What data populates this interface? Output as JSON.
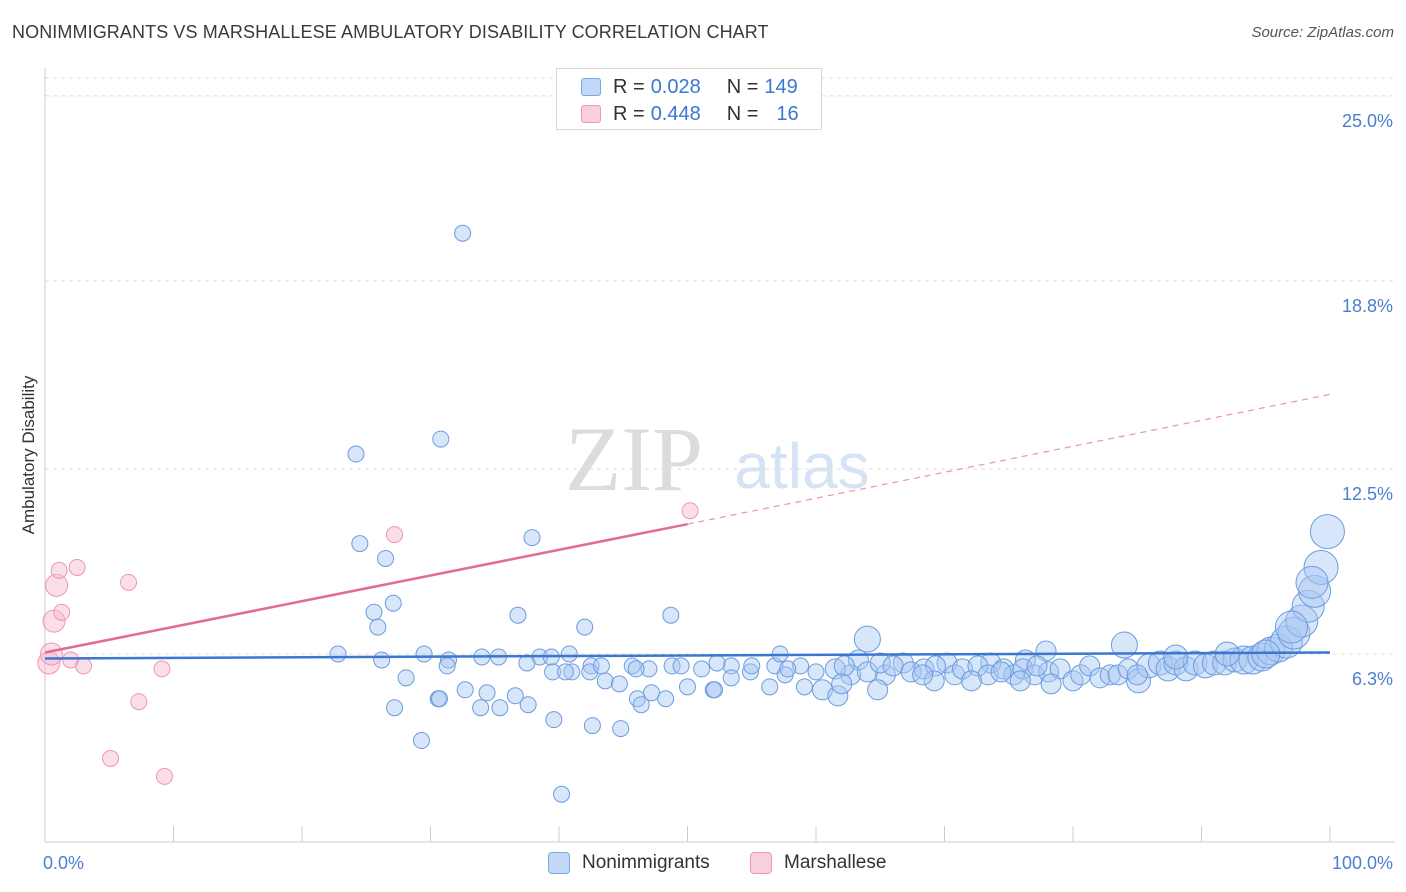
{
  "header": {
    "title": "NONIMMIGRANTS VS MARSHALLESE AMBULATORY DISABILITY CORRELATION CHART",
    "source": "Source: ZipAtlas.com"
  },
  "watermark": {
    "zip": "ZIP",
    "atlas": "atlas"
  },
  "legend_top": {
    "rows": [
      {
        "r_label": "R =",
        "r_value": "0.028",
        "n_label": "N =",
        "n_value": "149",
        "color": "#a9c8f2"
      },
      {
        "r_label": "R =",
        "r_value": "0.448",
        "n_label": "N =",
        "n_value": "16",
        "color": "#f6b9cb"
      }
    ]
  },
  "legend_bottom": {
    "items": [
      {
        "label": "Nonimmigrants",
        "color": "#a9c8f2"
      },
      {
        "label": "Marshallese",
        "color": "#f6b9cb"
      }
    ]
  },
  "chart_data": {
    "type": "scatter",
    "title": "NONIMMIGRANTS VS MARSHALLESE AMBULATORY DISABILITY CORRELATION CHART",
    "xlabel": "",
    "ylabel": "Ambulatory Disability",
    "xlim": [
      0,
      100
    ],
    "ylim": [
      0,
      25.6
    ],
    "x_tick_labels": [
      "0.0%",
      "100.0%"
    ],
    "y_ticks": [
      {
        "value": 6.3,
        "label": "6.3%"
      },
      {
        "value": 12.5,
        "label": "12.5%"
      },
      {
        "value": 18.8,
        "label": "18.8%"
      },
      {
        "value": 25.0,
        "label": "25.0%"
      }
    ],
    "grid": "horizontal dashed",
    "legend_position": "top-center",
    "colors": {
      "nonimmigrants": "#4a7fd0",
      "marshallese": "#e26a93"
    },
    "series": [
      {
        "name": "Nonimmigrants",
        "trend": {
          "x": [
            0,
            100
          ],
          "y": [
            6.15,
            6.35
          ],
          "style": "solid"
        },
        "points": [
          [
            32.5,
            20.4,
            1
          ],
          [
            24.2,
            13.0,
            1
          ],
          [
            24.5,
            10.0,
            1
          ],
          [
            30.8,
            13.5,
            1
          ],
          [
            26.5,
            9.5,
            1
          ],
          [
            37.9,
            10.2,
            1
          ],
          [
            25.6,
            7.7,
            1
          ],
          [
            25.9,
            7.2,
            1
          ],
          [
            27.1,
            8.0,
            1
          ],
          [
            36.8,
            7.6,
            1
          ],
          [
            42.0,
            7.2,
            1
          ],
          [
            48.7,
            7.6,
            1
          ],
          [
            26.2,
            6.1,
            1
          ],
          [
            29.5,
            6.3,
            1
          ],
          [
            31.4,
            6.1,
            1
          ],
          [
            35.3,
            6.2,
            1
          ],
          [
            38.5,
            6.2,
            1
          ],
          [
            39.4,
            6.2,
            1
          ],
          [
            40.8,
            6.3,
            1
          ],
          [
            42.5,
            5.9,
            1
          ],
          [
            45.7,
            5.9,
            1
          ],
          [
            47.0,
            5.8,
            1
          ],
          [
            51.1,
            5.8,
            1
          ],
          [
            48.8,
            5.9,
            1
          ],
          [
            53.4,
            5.9,
            1
          ],
          [
            56.8,
            5.9,
            1
          ],
          [
            57.2,
            6.3,
            1
          ],
          [
            58.8,
            5.9,
            1
          ],
          [
            63.3,
            6.1,
            1
          ],
          [
            66.8,
            6.0,
            1
          ],
          [
            70.2,
            6.0,
            1
          ],
          [
            73.6,
            6.0,
            1
          ],
          [
            76.3,
            6.1,
            1
          ],
          [
            77.9,
            6.4,
            1
          ],
          [
            28.1,
            5.5,
            1
          ],
          [
            30.6,
            4.8,
            1
          ],
          [
            32.7,
            5.1,
            1
          ],
          [
            34.4,
            5.0,
            1
          ],
          [
            35.4,
            4.5,
            1
          ],
          [
            36.6,
            4.9,
            1
          ],
          [
            37.6,
            4.6,
            1
          ],
          [
            39.5,
            5.7,
            1
          ],
          [
            41.0,
            5.7,
            1
          ],
          [
            42.4,
            5.7,
            1
          ],
          [
            43.6,
            5.4,
            1
          ],
          [
            44.7,
            5.3,
            1
          ],
          [
            46.1,
            4.8,
            1
          ],
          [
            47.2,
            5.0,
            1
          ],
          [
            48.3,
            4.8,
            1
          ],
          [
            50.0,
            5.2,
            1
          ],
          [
            52.0,
            5.1,
            1
          ],
          [
            53.4,
            5.5,
            1
          ],
          [
            54.9,
            5.7,
            1
          ],
          [
            56.4,
            5.2,
            1
          ],
          [
            57.6,
            5.6,
            1
          ],
          [
            59.1,
            5.2,
            1
          ],
          [
            60.5,
            5.1,
            1
          ],
          [
            61.7,
            4.9,
            1
          ],
          [
            62.7,
            5.6,
            1
          ],
          [
            65.4,
            5.6,
            1
          ],
          [
            27.2,
            4.5,
            1
          ],
          [
            30.7,
            4.8,
            1
          ],
          [
            33.9,
            4.5,
            1
          ],
          [
            39.6,
            4.1,
            1
          ],
          [
            42.6,
            3.9,
            1
          ],
          [
            44.8,
            3.8,
            1
          ],
          [
            46.4,
            4.6,
            1
          ],
          [
            29.3,
            3.4,
            1
          ],
          [
            40.2,
            1.6,
            1
          ],
          [
            22.8,
            6.3,
            1
          ],
          [
            31.3,
            5.9,
            1
          ],
          [
            34.0,
            6.2,
            1
          ],
          [
            37.5,
            6.0,
            1
          ],
          [
            40.5,
            5.7,
            1
          ],
          [
            43.3,
            5.9,
            1
          ],
          [
            46.0,
            5.8,
            1
          ],
          [
            49.5,
            5.9,
            1
          ],
          [
            52.3,
            6.0,
            1
          ],
          [
            55.0,
            5.9,
            1
          ],
          [
            57.8,
            5.8,
            1
          ],
          [
            60.0,
            5.7,
            1
          ],
          [
            61.5,
            5.8,
            1
          ],
          [
            62.2,
            5.9,
            1
          ],
          [
            64.0,
            5.7,
            1
          ],
          [
            65.0,
            6.0,
            1
          ],
          [
            66.0,
            5.9,
            1
          ],
          [
            67.4,
            5.7,
            1
          ],
          [
            68.4,
            5.8,
            1
          ],
          [
            69.3,
            5.9,
            1
          ],
          [
            70.8,
            5.6,
            1
          ],
          [
            71.4,
            5.8,
            1
          ],
          [
            72.6,
            5.9,
            1
          ],
          [
            73.4,
            5.6,
            1
          ],
          [
            74.6,
            5.8,
            1
          ],
          [
            75.4,
            5.6,
            1
          ],
          [
            76.1,
            5.8,
            1
          ],
          [
            77.0,
            5.6,
            1
          ],
          [
            78.1,
            5.7,
            1
          ],
          [
            79.0,
            5.8,
            1
          ],
          [
            80.0,
            5.4,
            1
          ],
          [
            80.6,
            5.6,
            1
          ],
          [
            81.3,
            5.9,
            1
          ],
          [
            82.1,
            5.5,
            1
          ],
          [
            82.9,
            5.6,
            1
          ],
          [
            83.5,
            5.6,
            1
          ],
          [
            84.3,
            5.8,
            1
          ],
          [
            85.1,
            5.4,
            1
          ],
          [
            85.9,
            5.9,
            1
          ],
          [
            86.8,
            6.0,
            1
          ],
          [
            87.4,
            5.8,
            1
          ],
          [
            88.0,
            6.0,
            1
          ],
          [
            88.8,
            5.8,
            1
          ],
          [
            89.5,
            6.0,
            1
          ],
          [
            90.3,
            5.9,
            1
          ],
          [
            91.0,
            6.0,
            1
          ],
          [
            91.8,
            6.0,
            1
          ],
          [
            92.6,
            6.1,
            1
          ],
          [
            93.3,
            6.1,
            1
          ],
          [
            94.0,
            6.1,
            1
          ],
          [
            94.7,
            6.2,
            1
          ],
          [
            95.4,
            6.4,
            1
          ],
          [
            96.0,
            6.5,
            1
          ],
          [
            96.6,
            6.7,
            1
          ],
          [
            97.2,
            7.0,
            1
          ],
          [
            97.8,
            7.4,
            1
          ],
          [
            98.3,
            7.9,
            1
          ],
          [
            98.8,
            8.4,
            1
          ],
          [
            99.3,
            9.2,
            1
          ],
          [
            64.0,
            6.8,
            1
          ],
          [
            84.0,
            6.6,
            1
          ],
          [
            52.1,
            5.1,
            1
          ],
          [
            62.0,
            5.3,
            1
          ],
          [
            64.8,
            5.1,
            1
          ],
          [
            69.2,
            5.4,
            1
          ],
          [
            72.1,
            5.4,
            1
          ],
          [
            75.9,
            5.4,
            1
          ],
          [
            78.3,
            5.3,
            1
          ],
          [
            88.0,
            6.2,
            1
          ],
          [
            92.0,
            6.3,
            1
          ],
          [
            85.0,
            5.6,
            1
          ],
          [
            77.2,
            5.9,
            1
          ],
          [
            68.3,
            5.6,
            1
          ],
          [
            74.4,
            5.7,
            1
          ],
          [
            95.0,
            6.3,
            1
          ],
          [
            97.0,
            7.2,
            1
          ],
          [
            99.8,
            10.4,
            1
          ],
          [
            98.6,
            8.7,
            1
          ]
        ]
      },
      {
        "name": "Marshallese",
        "trend": {
          "x": [
            0,
            50
          ],
          "y": [
            6.35,
            10.65
          ],
          "x_dashed_to": 100,
          "y_dashed_to": 15.0,
          "style": "solid-then-dashed"
        },
        "points": [
          [
            0.3,
            6.0,
            1
          ],
          [
            0.5,
            6.3,
            1
          ],
          [
            0.7,
            7.4,
            1
          ],
          [
            0.9,
            8.6,
            1
          ],
          [
            1.1,
            9.1,
            1
          ],
          [
            1.3,
            7.7,
            1
          ],
          [
            2.0,
            6.1,
            1
          ],
          [
            2.5,
            9.2,
            1
          ],
          [
            3.0,
            5.9,
            1
          ],
          [
            6.5,
            8.7,
            1
          ],
          [
            9.1,
            5.8,
            1
          ],
          [
            7.3,
            4.7,
            1
          ],
          [
            5.1,
            2.8,
            1
          ],
          [
            9.3,
            2.2,
            1
          ],
          [
            27.2,
            10.3,
            1
          ],
          [
            50.2,
            11.1,
            1
          ]
        ]
      }
    ]
  }
}
